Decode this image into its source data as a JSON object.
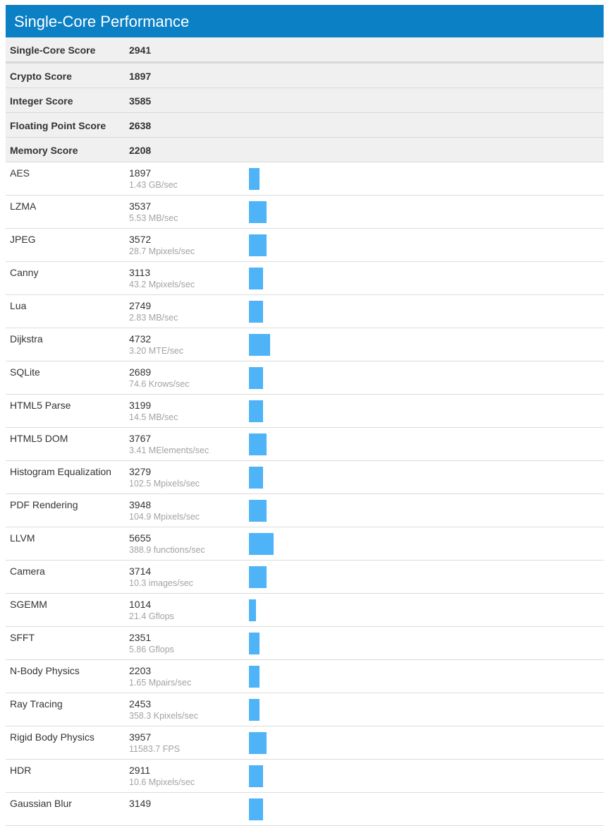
{
  "header": {
    "title": "Single-Core Performance"
  },
  "scores": [
    {
      "label": "Single-Core Score",
      "value": "2941"
    },
    {
      "label": "Crypto Score",
      "value": "1897"
    },
    {
      "label": "Integer Score",
      "value": "3585"
    },
    {
      "label": "Floating Point Score",
      "value": "2638"
    },
    {
      "label": "Memory Score",
      "value": "2208"
    }
  ],
  "benchmarks": [
    {
      "name": "AES",
      "score": "1897",
      "detail": "1.43 GB/sec"
    },
    {
      "name": "LZMA",
      "score": "3537",
      "detail": "5.53 MB/sec"
    },
    {
      "name": "JPEG",
      "score": "3572",
      "detail": "28.7 Mpixels/sec"
    },
    {
      "name": "Canny",
      "score": "3113",
      "detail": "43.2 Mpixels/sec"
    },
    {
      "name": "Lua",
      "score": "2749",
      "detail": "2.83 MB/sec"
    },
    {
      "name": "Dijkstra",
      "score": "4732",
      "detail": "3.20 MTE/sec"
    },
    {
      "name": "SQLite",
      "score": "2689",
      "detail": "74.6 Krows/sec"
    },
    {
      "name": "HTML5 Parse",
      "score": "3199",
      "detail": "14.5 MB/sec"
    },
    {
      "name": "HTML5 DOM",
      "score": "3767",
      "detail": "3.41 MElements/sec"
    },
    {
      "name": "Histogram Equalization",
      "score": "3279",
      "detail": "102.5 Mpixels/sec"
    },
    {
      "name": "PDF Rendering",
      "score": "3948",
      "detail": "104.9 Mpixels/sec"
    },
    {
      "name": "LLVM",
      "score": "5655",
      "detail": "388.9 functions/sec"
    },
    {
      "name": "Camera",
      "score": "3714",
      "detail": "10.3 images/sec"
    },
    {
      "name": "SGEMM",
      "score": "1014",
      "detail": "21.4 Gflops"
    },
    {
      "name": "SFFT",
      "score": "2351",
      "detail": "5.86 Gflops"
    },
    {
      "name": "N-Body Physics",
      "score": "2203",
      "detail": "1.65 Mpairs/sec"
    },
    {
      "name": "Ray Tracing",
      "score": "2453",
      "detail": "358.3 Kpixels/sec"
    },
    {
      "name": "Rigid Body Physics",
      "score": "3957",
      "detail": "11583.7 FPS"
    },
    {
      "name": "HDR",
      "score": "2911",
      "detail": "10.6 Mpixels/sec"
    },
    {
      "name": "Gaussian Blur",
      "score": "3149",
      "detail": ""
    }
  ],
  "colors": {
    "header": "#0b80c5",
    "bar": "#4fb3f7"
  }
}
